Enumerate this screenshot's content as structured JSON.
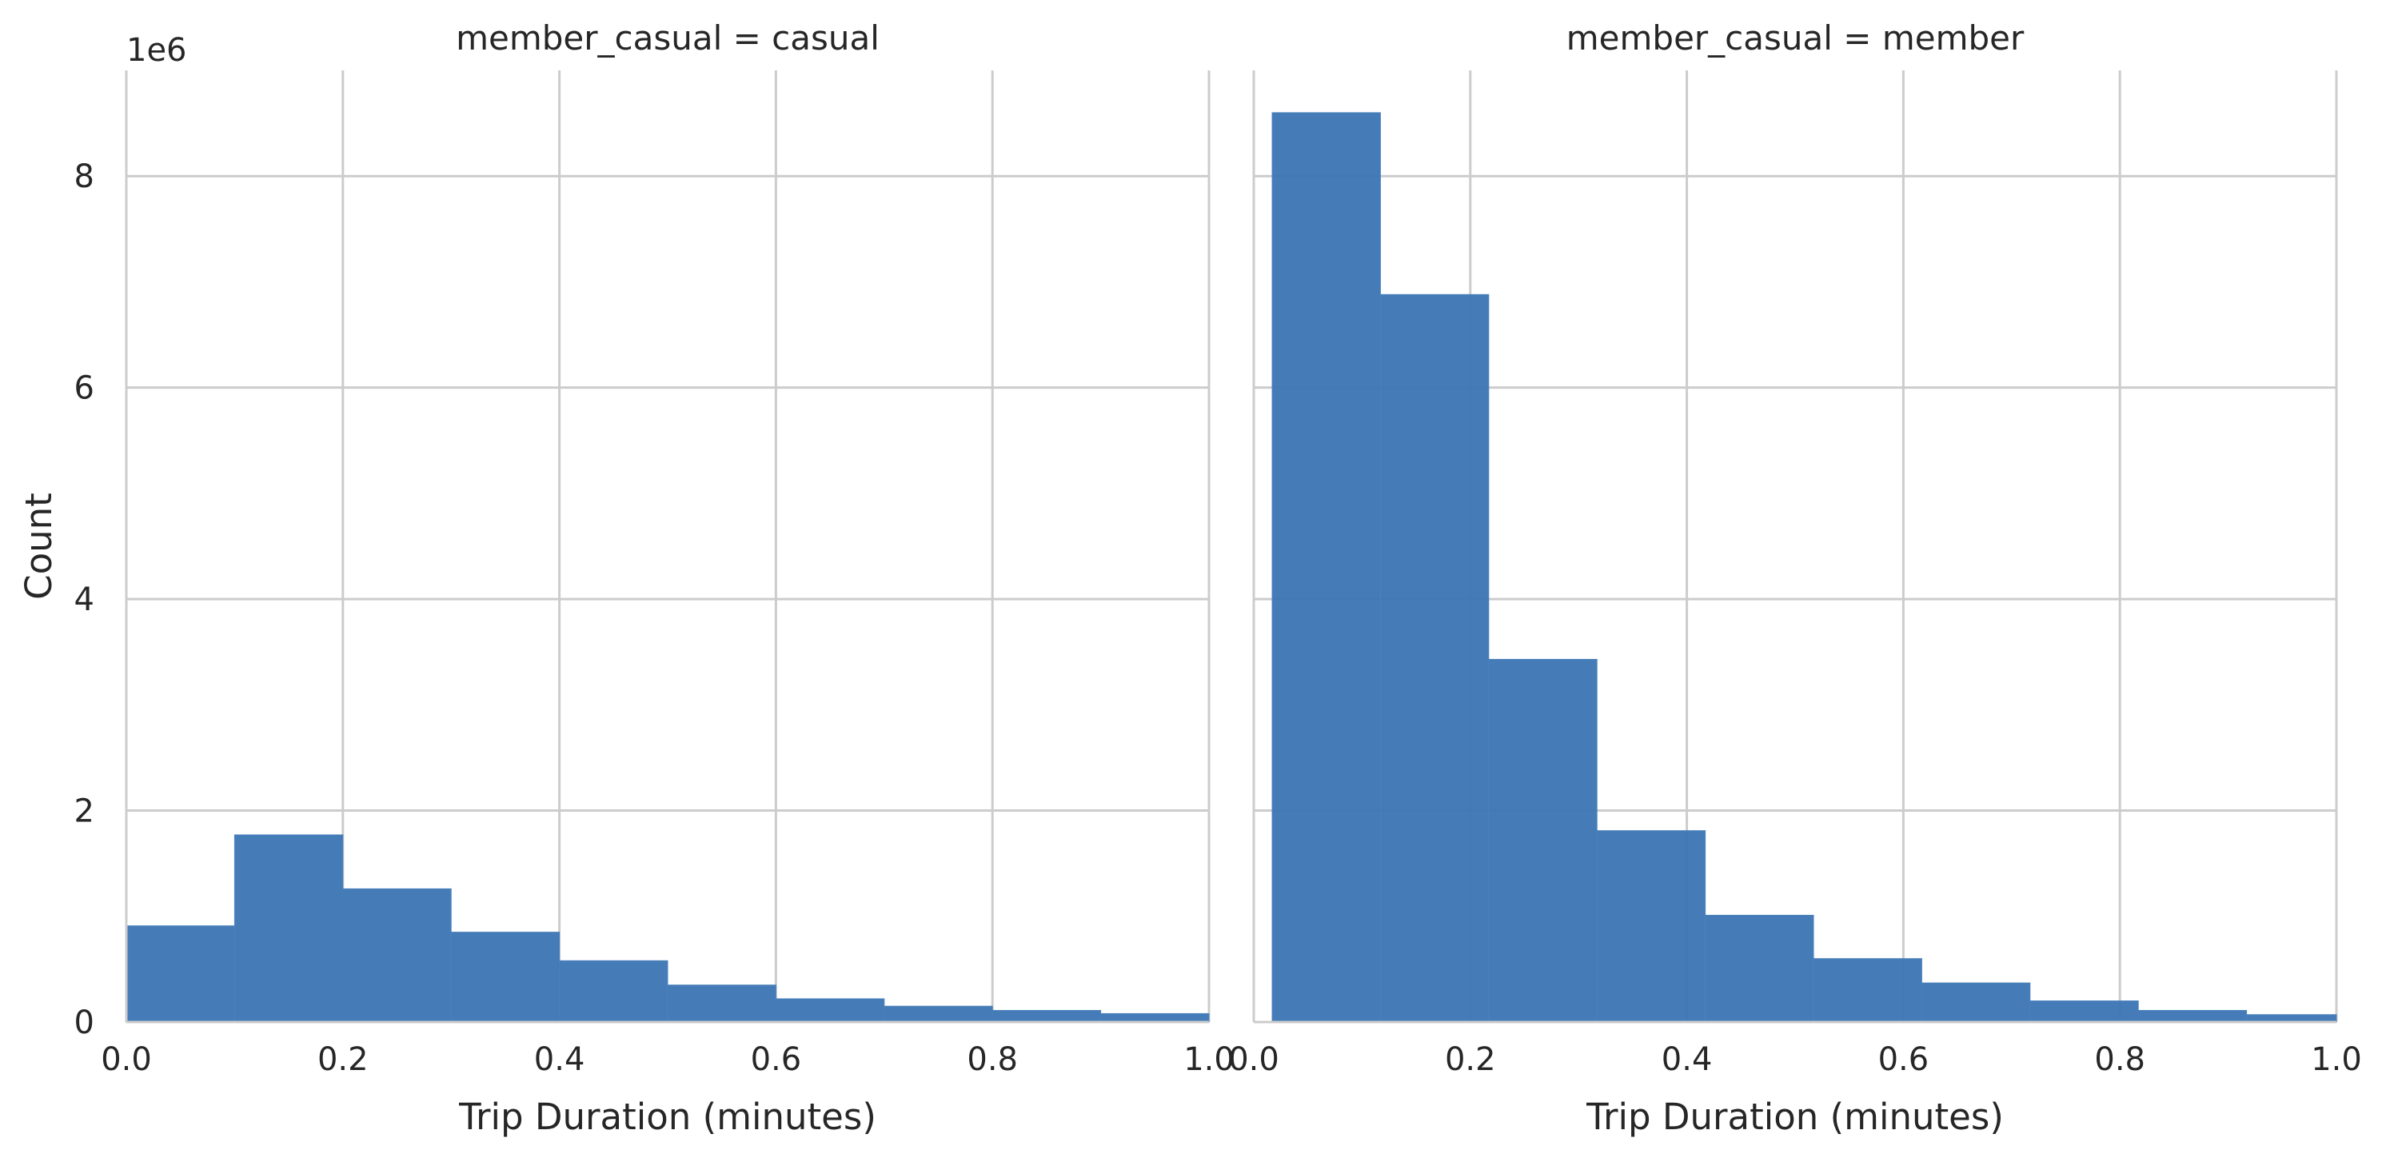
{
  "chart_data": [
    {
      "type": "bar",
      "title": "member_casual = casual",
      "xlabel": "Trip Duration (minutes)",
      "ylabel": "Count",
      "y_offset_label": "1e6",
      "xlim": [
        0.0,
        1.0
      ],
      "ylim": [
        0,
        9.0
      ],
      "grid": true,
      "color": "#3b75b4",
      "xticks": [
        "0.0",
        "0.2",
        "0.4",
        "0.6",
        "0.8",
        "1.0"
      ],
      "yticks": [
        "0",
        "2",
        "4",
        "6",
        "8"
      ],
      "bins": [
        {
          "x0": 0.0,
          "x1": 0.1,
          "value": 0.91
        },
        {
          "x0": 0.1,
          "x1": 0.2,
          "value": 1.77
        },
        {
          "x0": 0.2,
          "x1": 0.3,
          "value": 1.26
        },
        {
          "x0": 0.3,
          "x1": 0.4,
          "value": 0.85
        },
        {
          "x0": 0.4,
          "x1": 0.5,
          "value": 0.58
        },
        {
          "x0": 0.5,
          "x1": 0.6,
          "value": 0.35
        },
        {
          "x0": 0.6,
          "x1": 0.7,
          "value": 0.22
        },
        {
          "x0": 0.7,
          "x1": 0.8,
          "value": 0.15
        },
        {
          "x0": 0.8,
          "x1": 0.9,
          "value": 0.11
        },
        {
          "x0": 0.9,
          "x1": 1.0,
          "value": 0.08
        }
      ]
    },
    {
      "type": "bar",
      "title": "member_casual = member",
      "xlabel": "Trip Duration (minutes)",
      "ylabel": "",
      "xlim": [
        0.0,
        1.0
      ],
      "ylim": [
        0,
        9.0
      ],
      "grid": true,
      "color": "#3b75b4",
      "xticks": [
        "0.0",
        "0.2",
        "0.4",
        "0.6",
        "0.8",
        "1.0"
      ],
      "yticks": [],
      "bins": [
        {
          "x0": 0.017,
          "x1": 0.117,
          "value": 8.6
        },
        {
          "x0": 0.117,
          "x1": 0.217,
          "value": 6.88
        },
        {
          "x0": 0.217,
          "x1": 0.317,
          "value": 3.43
        },
        {
          "x0": 0.317,
          "x1": 0.417,
          "value": 1.81
        },
        {
          "x0": 0.417,
          "x1": 0.517,
          "value": 1.01
        },
        {
          "x0": 0.517,
          "x1": 0.617,
          "value": 0.6
        },
        {
          "x0": 0.617,
          "x1": 0.717,
          "value": 0.37
        },
        {
          "x0": 0.717,
          "x1": 0.817,
          "value": 0.2
        },
        {
          "x0": 0.817,
          "x1": 0.917,
          "value": 0.11
        },
        {
          "x0": 0.917,
          "x1": 1.0,
          "value": 0.07
        }
      ]
    }
  ]
}
